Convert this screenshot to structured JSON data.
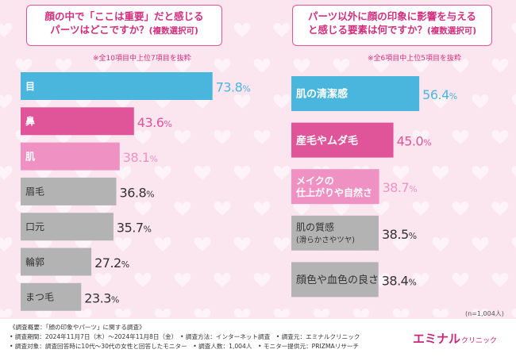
{
  "colors": {
    "cyan": "#4ab6dd",
    "magenta": "#e0559a",
    "pink": "#ef92c3",
    "gray": "#b3b3b3",
    "text_pink": "#d0307e"
  },
  "left": {
    "question_line1": "顔の中で「ここは重要」だと感じる",
    "question_line2": "パーツはどこですか？",
    "question_tag": "(複数選択可)",
    "note": "※全10項目中上位7項目を抜粋"
  },
  "right": {
    "question_line1": "パーツ以外に顔の印象に影響を与える",
    "question_line2": "と感じる要素は何ですか？",
    "question_tag": "(複数選択可)",
    "note": "※全6項目中上位5項目を抜粋",
    "n_label": "(n=1,004人)"
  },
  "chart_data": [
    {
      "type": "bar",
      "orientation": "horizontal",
      "title": "顔の中で「ここは重要」だと感じるパーツはどこですか？(複数選択可)",
      "unit": "%",
      "categories": [
        "目",
        "鼻",
        "肌",
        "眉毛",
        "口元",
        "輪郭",
        "まつ毛"
      ],
      "values": [
        73.8,
        43.6,
        38.1,
        36.8,
        35.7,
        27.2,
        23.3
      ],
      "color_keys": [
        "cyan",
        "magenta",
        "pink",
        "gray",
        "gray",
        "gray",
        "gray"
      ],
      "xlim": [
        0,
        80
      ]
    },
    {
      "type": "bar",
      "orientation": "horizontal",
      "title": "パーツ以外に顔の印象に影響を与えると感じる要素は何ですか？(複数選択可)",
      "unit": "%",
      "categories": [
        [
          "肌の清潔感"
        ],
        [
          "産毛やムダ毛"
        ],
        [
          "メイクの",
          "仕上がりや自然さ"
        ],
        [
          "肌の質感",
          "(滑らかさやツヤ)"
        ],
        [
          "顔色や血色の良さ"
        ]
      ],
      "values": [
        56.4,
        45.0,
        38.7,
        38.5,
        38.4
      ],
      "color_keys": [
        "cyan",
        "magenta",
        "pink",
        "gray",
        "gray"
      ],
      "xlim": [
        0,
        70
      ]
    }
  ],
  "footer": {
    "line1": "《調査概要：「顔の印象やパーツ」に関する調査》",
    "line2": "• 調査期間：2024年11月7日（木）〜2024年11月8日（金）　• 調査方法：インターネット調査　• 調査元：エミナルクリニック",
    "line3": "• 調査対象：調査回答時に10代〜30代の女性と回答したモニター　• 調査人数：1,004人　• モニター提供元：PRIZMAリサーチ"
  },
  "brand": {
    "main": "エミナル",
    "sub": "クリニック"
  }
}
